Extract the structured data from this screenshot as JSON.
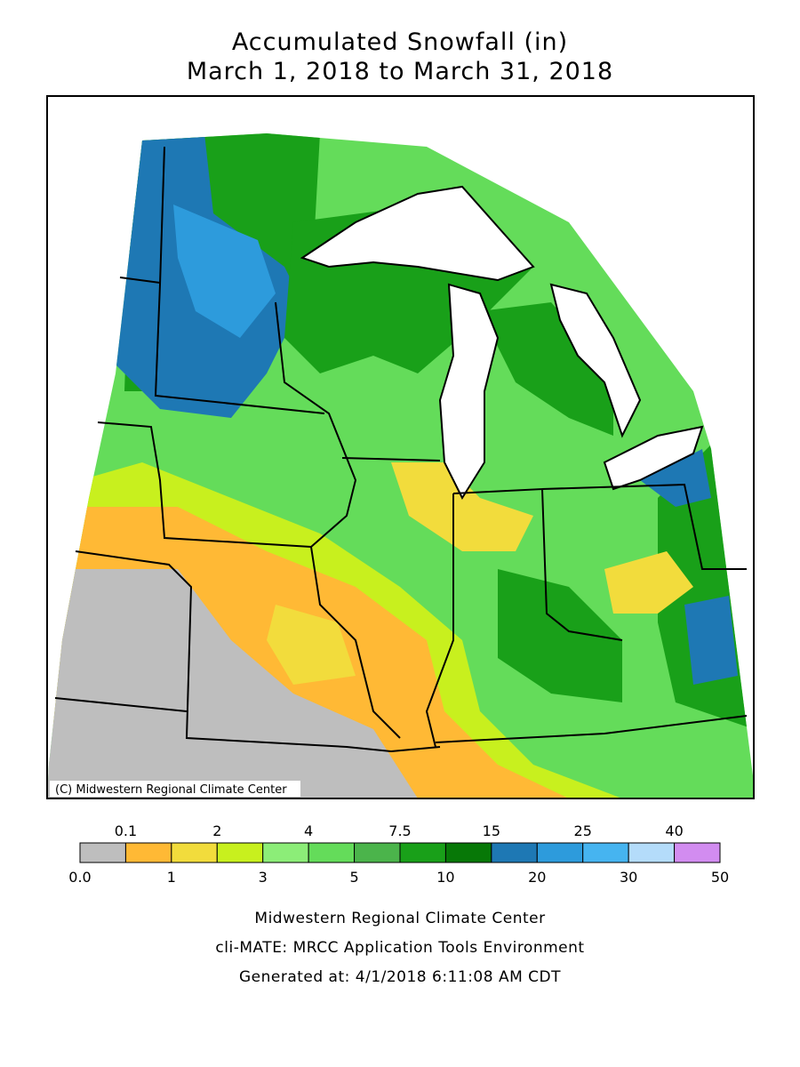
{
  "header": {
    "title": "Accumulated Snowfall (in)",
    "subtitle": "March 1, 2018 to March 31, 2018"
  },
  "map": {
    "copyright": "(C) Midwestern Regional Climate Center"
  },
  "legend": {
    "bins": [
      {
        "value": 0,
        "label": "0.0"
      },
      0.1,
      1,
      2,
      3,
      4,
      5,
      7.5,
      10,
      15,
      20,
      25,
      30,
      40,
      50
    ],
    "colors": [
      "#bebebe",
      "#ffb935",
      "#f2dc3c",
      "#c8f01e",
      "#8ced78",
      "#64dc5a",
      "#4bb44b",
      "#19a019",
      "#077807",
      "#1e78b4",
      "#2d9bdc",
      "#46b4f0",
      "#b4dcfa",
      "#d28cf0"
    ]
  },
  "footer": {
    "line1": "Midwestern Regional Climate Center",
    "line2": "cli-MATE: MRCC Application Tools Environment",
    "line3": "Generated at: 4/1/2018 6:11:08 AM CDT"
  }
}
